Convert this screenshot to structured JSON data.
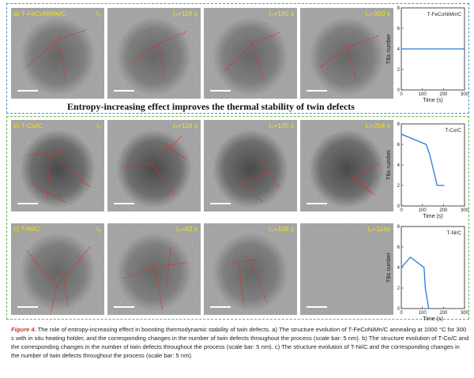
{
  "banner": "Entropy-increasing effect improves the thermal stability of twin defects",
  "rows": [
    {
      "id": "a",
      "frames": [
        {
          "label": "a) T-FeCoNiMn/C",
          "time": "t₀"
        },
        {
          "label": "",
          "time": "t₀+116 s"
        },
        {
          "label": "",
          "time": "t₀+190 s"
        },
        {
          "label": "",
          "time": "t₀+300 s"
        }
      ]
    },
    {
      "id": "b",
      "frames": [
        {
          "label": "b) T-Co/C",
          "time": "t₀"
        },
        {
          "label": "",
          "time": "t₀+118 s"
        },
        {
          "label": "",
          "time": "t₀+135 s"
        },
        {
          "label": "",
          "time": "t₀+204 s"
        }
      ]
    },
    {
      "id": "c",
      "frames": [
        {
          "label": "c) T-Ni/C",
          "time": "t₀"
        },
        {
          "label": "",
          "time": "t₀+43 s"
        },
        {
          "label": "",
          "time": "t₀+108 s"
        },
        {
          "label": "",
          "time": "t₀+114s"
        }
      ]
    }
  ],
  "chart_data": [
    {
      "type": "line",
      "legend": "T-FeCoNiMn/C",
      "xlabel": "Time (s)",
      "ylabel": "TBs number",
      "xlim": [
        0,
        300
      ],
      "ylim": [
        0,
        8
      ],
      "xticks": [
        0,
        100,
        200,
        300
      ],
      "yticks": [
        0,
        2,
        4,
        6,
        8
      ],
      "x": [
        0,
        300
      ],
      "y": [
        4,
        4
      ],
      "color": "#2a7ad5"
    },
    {
      "type": "line",
      "legend": "T-Co/C",
      "xlabel": "Time (s)",
      "ylabel": "TBs number",
      "xlim": [
        0,
        300
      ],
      "ylim": [
        0,
        8
      ],
      "xticks": [
        0,
        100,
        200,
        300
      ],
      "yticks": [
        0,
        2,
        4,
        6,
        8
      ],
      "x": [
        0,
        118,
        135,
        170,
        204
      ],
      "y": [
        7,
        6,
        5,
        2,
        2
      ],
      "color": "#2a7ad5"
    },
    {
      "type": "line",
      "legend": "T-Ni/C",
      "xlabel": "Time (s)",
      "ylabel": "TBs number",
      "xlim": [
        0,
        300
      ],
      "ylim": [
        0,
        8
      ],
      "xticks": [
        0,
        100,
        200,
        300
      ],
      "yticks": [
        0,
        2,
        4,
        6,
        8
      ],
      "x": [
        0,
        43,
        108,
        114,
        130
      ],
      "y": [
        4,
        5,
        4,
        2,
        0
      ],
      "color": "#2a7ad5"
    }
  ],
  "caption": {
    "fig": "Figure 4.",
    "text": " The role of entropy-increasing effect in boosting thermodynamic stability of twin defects. a) The structure evolution of T-FeCoNiMn/C annealing at 1000 °C for 300 s with in situ heating holder, and the corresponding changes in the number of twin defects throughout the process (scale bar: 5 nm). b) The structure evolution of T-Co/C and the corresponding changes in the number of twin defects throughout the process (scale bar: 5 nm). c) The structure evolution of T-Ni/C and the corresponding changes in the number of twin defects throughout the process (scale bar: 5 nm)."
  }
}
